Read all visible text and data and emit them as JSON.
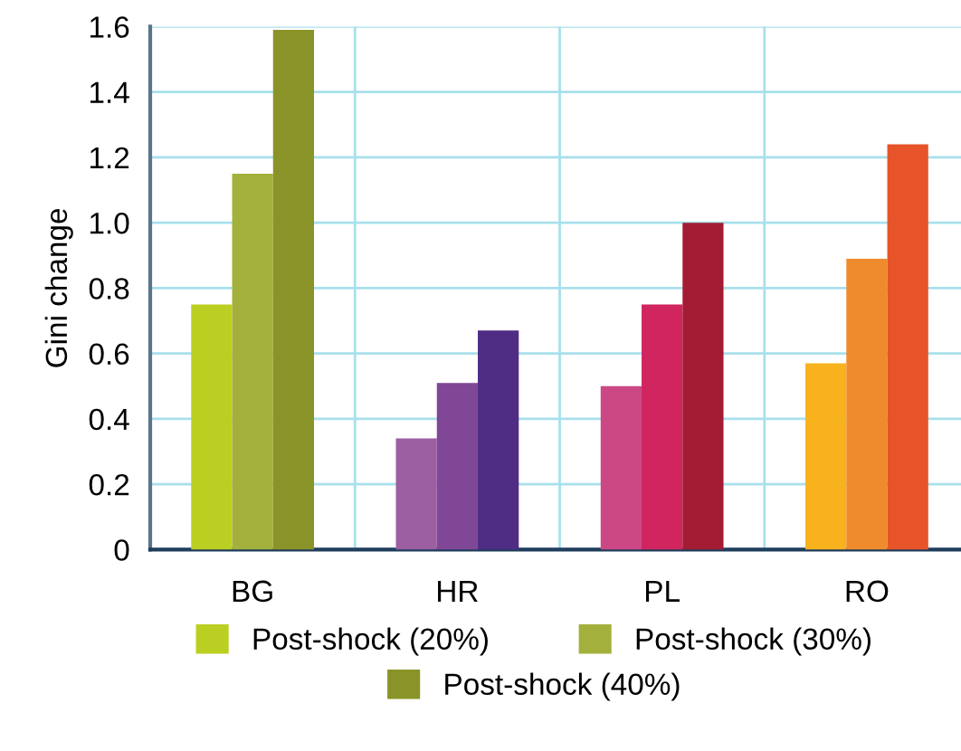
{
  "chart_data": {
    "type": "bar",
    "ylabel": "Gini change",
    "categories": [
      "BG",
      "HR",
      "PL",
      "RO"
    ],
    "series": [
      {
        "name": "Post-shock (20%)",
        "color": "#bbcf22",
        "colors": [
          "#bbcf22",
          "#9b5fa2",
          "#cc4884",
          "#f7b21e"
        ],
        "values": [
          0.75,
          0.34,
          0.5,
          0.57
        ]
      },
      {
        "name": "Post-shock (30%)",
        "color": "#a3b13c",
        "colors": [
          "#a3b13c",
          "#7f4796",
          "#d1255f",
          "#f08b2d"
        ],
        "values": [
          1.15,
          0.51,
          0.75,
          0.89
        ]
      },
      {
        "name": "Post-shock (40%)",
        "color": "#8a9327",
        "colors": [
          "#8a9327",
          "#4f2d85",
          "#a31c34",
          "#e85429"
        ],
        "values": [
          1.59,
          0.67,
          1.0,
          1.24
        ]
      }
    ],
    "ylim": [
      0,
      1.6
    ],
    "yticks": [
      0,
      0.2,
      0.4,
      0.6,
      0.8,
      {
        "value": 1.0,
        "label": "1.0"
      },
      1.2,
      1.4,
      1.6
    ],
    "grid": true,
    "legend": "bottom"
  }
}
